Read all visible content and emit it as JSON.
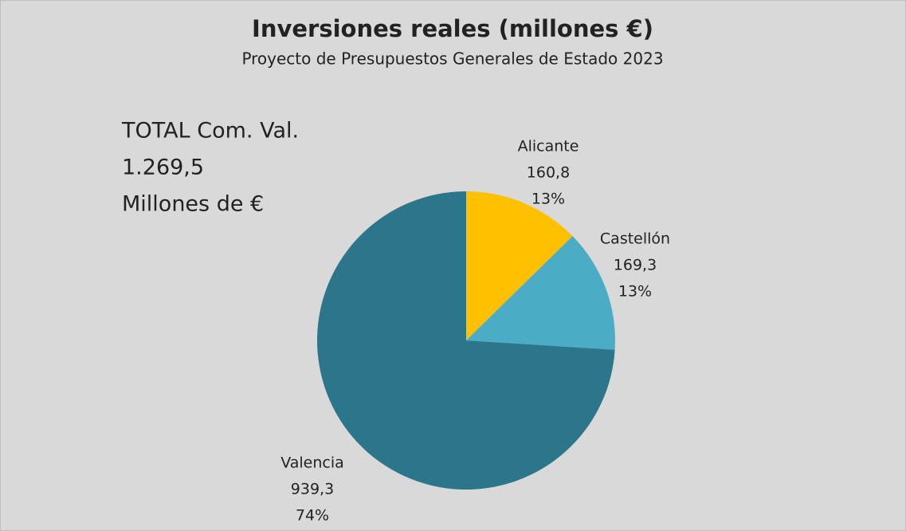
{
  "chart_data": {
    "type": "pie",
    "title": "Inversiones reales (millones €)",
    "subtitle": "Proyecto de Presupuestos Generales de Estado 2023",
    "annotation": [
      "TOTAL Com. Val.",
      "1.269,5",
      "Millones de €"
    ],
    "categories": [
      "Alicante",
      "Castellón",
      "Valencia"
    ],
    "values": [
      160.8,
      169.3,
      939.3
    ],
    "value_labels": [
      "160,8",
      "169,3",
      "939,3"
    ],
    "percent_labels": [
      "13%",
      "13%",
      "74%"
    ],
    "colors": [
      "#ffc000",
      "#4bacc6",
      "#2b768a"
    ]
  }
}
